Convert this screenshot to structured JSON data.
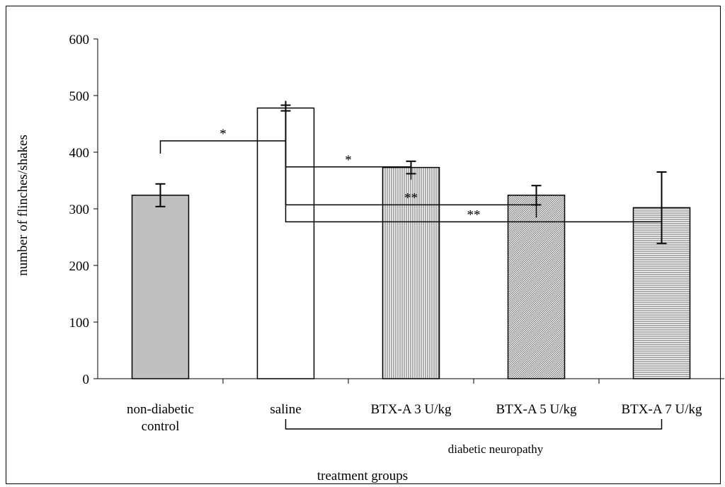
{
  "chart_data": {
    "type": "bar",
    "ylabel": "number of flinches/shakes",
    "xlabel": "treatment groups",
    "ylim": [
      0,
      600
    ],
    "yticks": [
      0,
      100,
      200,
      300,
      400,
      500,
      600
    ],
    "grid": false,
    "categories": [
      [
        "non-diabetic",
        "control"
      ],
      [
        "saline"
      ],
      [
        "BTX-A 3 U/kg"
      ],
      [
        "BTX-A 5 U/kg"
      ],
      [
        "BTX-A 7 U/kg"
      ]
    ],
    "values": [
      324,
      478,
      373,
      324,
      302
    ],
    "errors": [
      20,
      5,
      11,
      17,
      63
    ],
    "fills": [
      "solid-gray",
      "white",
      "vertical-lines",
      "diagonal-lines",
      "horizontal-lines"
    ],
    "group_label": "diabetic neuropathy",
    "significance": [
      {
        "from": 1,
        "to": 0,
        "label": "*"
      },
      {
        "from": 1,
        "to": 2,
        "label": "*"
      },
      {
        "from": 1,
        "to": 3,
        "label": "**"
      },
      {
        "from": 1,
        "to": 4,
        "label": "**"
      }
    ]
  },
  "colors": {
    "bar_gray": "#c0c0c0",
    "bar_white": "#ffffff",
    "axis": "#000000"
  }
}
